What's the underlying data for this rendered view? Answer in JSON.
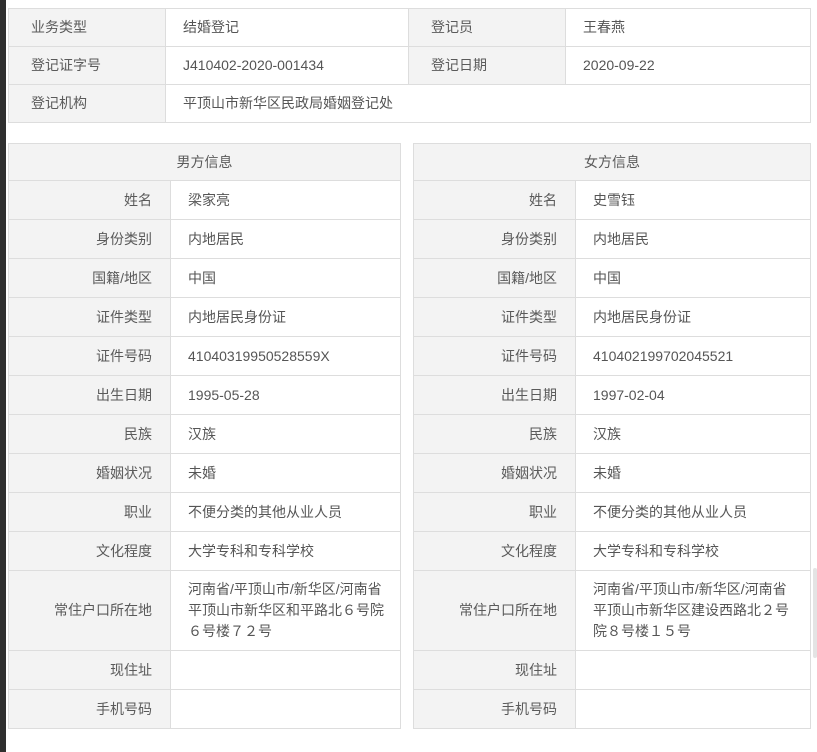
{
  "colors": {
    "label_bg": "#f3f3f3",
    "border": "#dddddd",
    "text": "#595959",
    "left_strip": "#2f2f2f"
  },
  "summary": {
    "rows": [
      {
        "label": "业务类型",
        "value": "结婚登记",
        "label2": "登记员",
        "value2": "王春燕"
      },
      {
        "label": "登记证字号",
        "value": "J410402-2020-001434",
        "label2": "登记日期",
        "value2": "2020-09-22"
      },
      {
        "label": "登记机构",
        "value": "平顶山市新华区民政局婚姻登记处"
      }
    ]
  },
  "male": {
    "title": "男方信息",
    "fields": [
      {
        "label": "姓名",
        "value": "梁家亮"
      },
      {
        "label": "身份类别",
        "value": "内地居民"
      },
      {
        "label": "国籍/地区",
        "value": "中国"
      },
      {
        "label": "证件类型",
        "value": "内地居民身份证"
      },
      {
        "label": "证件号码",
        "value": "41040319950528559X"
      },
      {
        "label": "出生日期",
        "value": "1995-05-28"
      },
      {
        "label": "民族",
        "value": "汉族"
      },
      {
        "label": "婚姻状况",
        "value": "未婚"
      },
      {
        "label": "职业",
        "value": "不便分类的其他从业人员"
      },
      {
        "label": "文化程度",
        "value": "大学专科和专科学校"
      },
      {
        "label": "常住户口所在地",
        "value": "河南省/平顶山市/新华区/河南省平顶山市新华区和平路北６号院６号楼７２号"
      },
      {
        "label": "现住址",
        "value": ""
      },
      {
        "label": "手机号码",
        "value": ""
      }
    ]
  },
  "female": {
    "title": "女方信息",
    "fields": [
      {
        "label": "姓名",
        "value": "史雪钰"
      },
      {
        "label": "身份类别",
        "value": "内地居民"
      },
      {
        "label": "国籍/地区",
        "value": "中国"
      },
      {
        "label": "证件类型",
        "value": "内地居民身份证"
      },
      {
        "label": "证件号码",
        "value": "410402199702045521"
      },
      {
        "label": "出生日期",
        "value": "1997-02-04"
      },
      {
        "label": "民族",
        "value": "汉族"
      },
      {
        "label": "婚姻状况",
        "value": "未婚"
      },
      {
        "label": "职业",
        "value": "不便分类的其他从业人员"
      },
      {
        "label": "文化程度",
        "value": "大学专科和专科学校"
      },
      {
        "label": "常住户口所在地",
        "value": "河南省/平顶山市/新华区/河南省平顶山市新华区建设西路北２号院８号楼１５号"
      },
      {
        "label": "现住址",
        "value": ""
      },
      {
        "label": "手机号码",
        "value": ""
      }
    ]
  }
}
